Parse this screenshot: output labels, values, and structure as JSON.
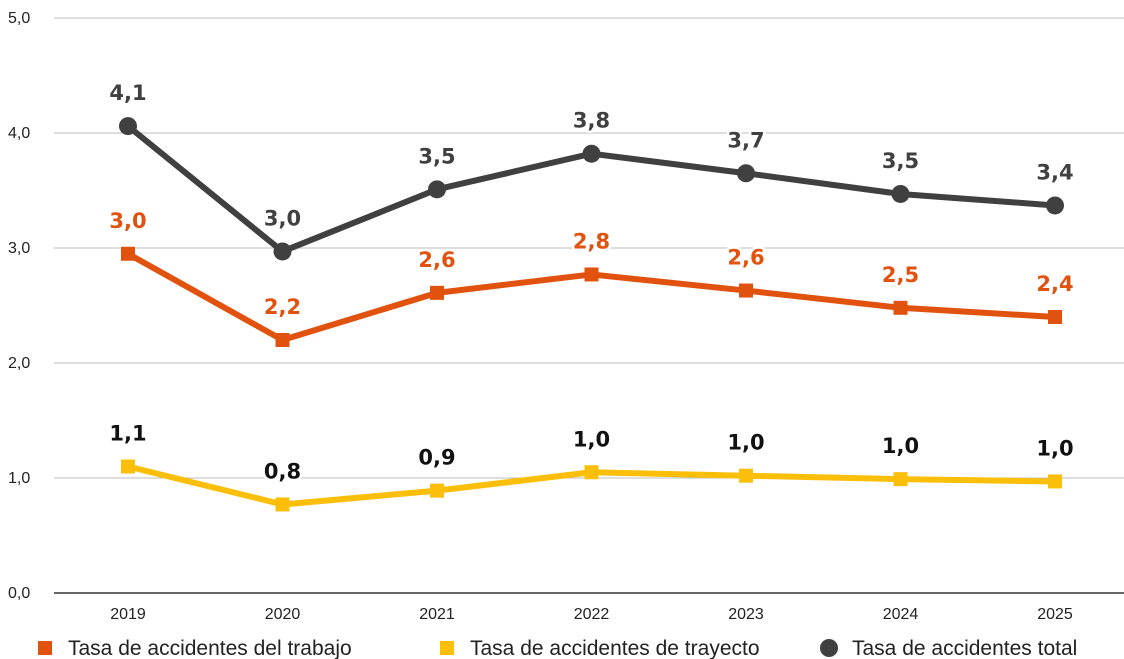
{
  "chart_data": {
    "type": "line",
    "categories": [
      "2019",
      "2020",
      "2021",
      "2022",
      "2023",
      "2024",
      "2025"
    ],
    "ylim": [
      0,
      5
    ],
    "yticks": [
      "0,0",
      "1,0",
      "2,0",
      "3,0",
      "4,0",
      "5,0"
    ],
    "grid": true,
    "legend_position": "bottom",
    "series": [
      {
        "name": "Tasa de accidentes del trabajo",
        "color": "#e2520f",
        "label_color": "#e2520f",
        "marker": "square",
        "values": [
          2.95,
          2.2,
          2.61,
          2.77,
          2.63,
          2.48,
          2.4
        ],
        "labels": [
          "3,0",
          "2,2",
          "2,6",
          "2,8",
          "2,6",
          "2,5",
          "2,4"
        ]
      },
      {
        "name": "Tasa de accidentes de trayecto",
        "color": "#fbbf0a",
        "label_color": "#111111",
        "marker": "square",
        "values": [
          1.1,
          0.77,
          0.89,
          1.05,
          1.02,
          0.99,
          0.97
        ],
        "labels": [
          "1,1",
          "0,8",
          "0,9",
          "1,0",
          "1,0",
          "1,0",
          "1,0"
        ]
      },
      {
        "name": "Tasa de accidentes total",
        "color": "#404040",
        "label_color": "#404040",
        "marker": "circle",
        "values": [
          4.06,
          2.97,
          3.51,
          3.82,
          3.65,
          3.47,
          3.37
        ],
        "labels": [
          "4,1",
          "3,0",
          "3,5",
          "3,8",
          "3,7",
          "3,5",
          "3,4"
        ]
      }
    ]
  }
}
